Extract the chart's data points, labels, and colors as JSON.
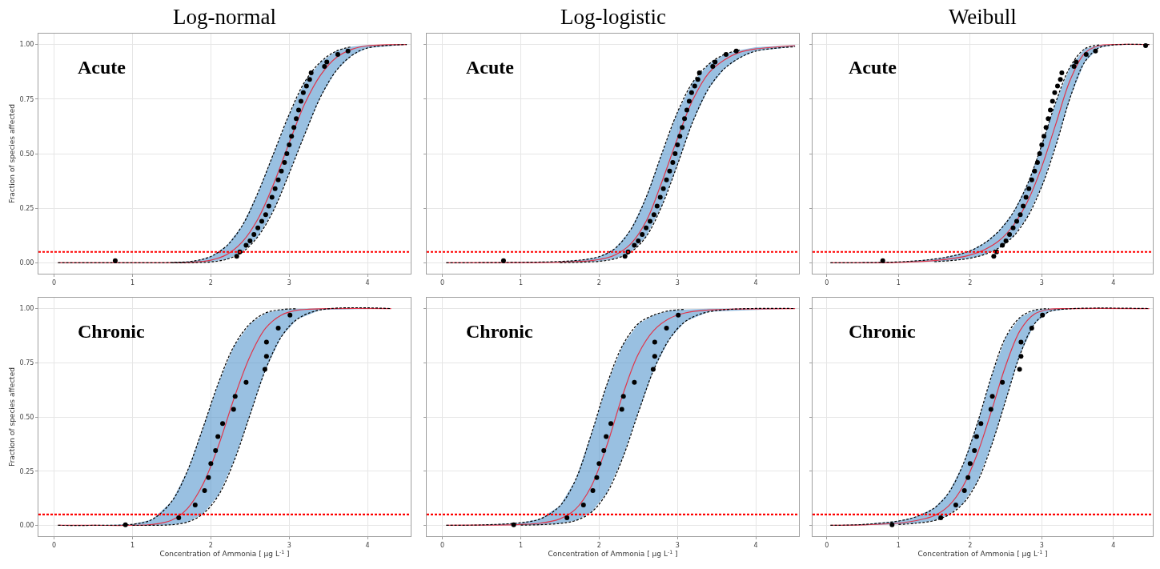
{
  "chart_data": [
    {
      "type": "scatter",
      "title": "Log-normal",
      "ylabel": "Fraction of species affected",
      "annotations": [
        "Acute"
      ],
      "x": [
        0.05,
        1,
        1.5,
        1.8,
        2,
        2.2,
        2.4,
        2.6,
        2.8,
        3,
        3.2,
        3.4,
        3.6,
        3.8,
        4,
        4.5
      ],
      "xlim": [
        -0.2,
        4.55
      ],
      "ylim": [
        -0.05,
        1.05
      ],
      "xticks": [
        0,
        1,
        2,
        3,
        4
      ],
      "yticks": [
        {
          "value": 0,
          "label": "0.00"
        },
        {
          "value": 0.25,
          "label": "0.25"
        },
        {
          "value": 0.5,
          "label": "0.50"
        },
        {
          "value": 0.75,
          "label": "0.75"
        },
        {
          "value": 1,
          "label": "1.00"
        }
      ],
      "grid": true,
      "series": [
        {
          "type": "line",
          "color": "#e0354a",
          "line_style": "solid",
          "values": [
            0,
            0,
            0,
            0.003,
            0.012,
            0.037,
            0.095,
            0.2,
            0.36,
            0.55,
            0.73,
            0.86,
            0.94,
            0.978,
            0.994,
            1
          ],
          "lower": [
            0,
            0,
            0,
            0.001,
            0.004,
            0.016,
            0.048,
            0.12,
            0.24,
            0.41,
            0.59,
            0.76,
            0.88,
            0.95,
            0.984,
            1
          ],
          "upper": [
            0,
            0,
            0.001,
            0.009,
            0.029,
            0.077,
            0.17,
            0.32,
            0.5,
            0.68,
            0.83,
            0.92,
            0.97,
            0.99,
            0.998,
            1
          ]
        },
        {
          "type": "line",
          "color": "#000000",
          "line_style": "dashed",
          "x": [
            1.5,
            1.8,
            2,
            2.2,
            2.4,
            2.6,
            2.8,
            3,
            3.2,
            3.4,
            3.6,
            3.8,
            4,
            4.5
          ],
          "values": [
            0,
            0.001,
            0.004,
            0.016,
            0.048,
            0.12,
            0.24,
            0.41,
            0.59,
            0.76,
            0.88,
            0.95,
            0.984,
            1
          ]
        },
        {
          "type": "line",
          "color": "#000000",
          "line_style": "dashed",
          "x": [
            0.05,
            1,
            1.5,
            1.8,
            2,
            2.2,
            2.4,
            2.6,
            2.8,
            3,
            3.2,
            3.4,
            3.6,
            3.8
          ],
          "values": [
            0,
            0,
            0.001,
            0.009,
            0.029,
            0.077,
            0.17,
            0.32,
            0.5,
            0.68,
            0.83,
            0.92,
            0.97,
            0.99
          ]
        },
        {
          "color": "#000000",
          "marker": "circle",
          "x": [
            0.78,
            2.33,
            2.37,
            2.45,
            2.5,
            2.55,
            2.6,
            2.65,
            2.7,
            2.74,
            2.78,
            2.82,
            2.86,
            2.9,
            2.94,
            2.97,
            3,
            3.03,
            3.06,
            3.09,
            3.12,
            3.15,
            3.18,
            3.22,
            3.26,
            3.28,
            3.45,
            3.48,
            3.62,
            3.75
          ],
          "values": [
            0.01,
            0.03,
            0.05,
            0.08,
            0.1,
            0.13,
            0.16,
            0.19,
            0.22,
            0.26,
            0.3,
            0.34,
            0.38,
            0.42,
            0.46,
            0.5,
            0.54,
            0.58,
            0.62,
            0.66,
            0.7,
            0.74,
            0.78,
            0.81,
            0.84,
            0.87,
            0.9,
            0.92,
            0.955,
            0.97
          ]
        }
      ],
      "ref_lines": [
        {
          "axis": "y",
          "value": 0.05,
          "color": "#ff0000",
          "line_style": "dashed"
        }
      ]
    },
    {
      "type": "scatter",
      "title": "Log-logistic",
      "annotations": [
        "Acute"
      ],
      "tick_labels": "x",
      "x": [
        0.05,
        1,
        1.5,
        1.8,
        2,
        2.2,
        2.4,
        2.6,
        2.8,
        3,
        3.2,
        3.4,
        3.6,
        3.8,
        4,
        4.5
      ],
      "xlim": [
        -0.2,
        4.55
      ],
      "ylim": [
        -0.05,
        1.05
      ],
      "xticks": [
        0,
        1,
        2,
        3,
        4
      ],
      "yticks": [
        0,
        0.25,
        0.5,
        0.75,
        1
      ],
      "grid": true,
      "series": [
        {
          "type": "line",
          "color": "#e0354a",
          "line_style": "solid",
          "values": [
            0,
            0.001,
            0.003,
            0.007,
            0.015,
            0.035,
            0.085,
            0.19,
            0.37,
            0.57,
            0.75,
            0.87,
            0.93,
            0.965,
            0.98,
            0.995
          ],
          "lower": [
            0,
            0,
            0.001,
            0.003,
            0.007,
            0.018,
            0.048,
            0.12,
            0.26,
            0.45,
            0.65,
            0.8,
            0.89,
            0.94,
            0.97,
            0.99
          ],
          "upper": [
            0,
            0.002,
            0.006,
            0.014,
            0.028,
            0.065,
            0.15,
            0.3,
            0.5,
            0.69,
            0.83,
            0.91,
            0.955,
            0.975,
            0.988,
            0.998
          ]
        },
        {
          "type": "line",
          "color": "#000000",
          "line_style": "dashed",
          "x": [
            1.5,
            1.8,
            2,
            2.2,
            2.4,
            2.6,
            2.8,
            3,
            3.2,
            3.4,
            3.6,
            3.8,
            4,
            4.5
          ],
          "values": [
            0.001,
            0.003,
            0.007,
            0.018,
            0.048,
            0.12,
            0.26,
            0.45,
            0.65,
            0.8,
            0.89,
            0.94,
            0.97,
            0.99
          ]
        },
        {
          "type": "line",
          "color": "#000000",
          "line_style": "dashed",
          "x": [
            0.05,
            1,
            1.5,
            1.8,
            2,
            2.2,
            2.4,
            2.6,
            2.8,
            3,
            3.2,
            3.4,
            3.6,
            3.8
          ],
          "values": [
            0,
            0.002,
            0.006,
            0.014,
            0.028,
            0.065,
            0.15,
            0.3,
            0.5,
            0.69,
            0.83,
            0.91,
            0.955,
            0.975
          ]
        },
        {
          "color": "#000000",
          "marker": "circle",
          "x": [
            0.78,
            2.33,
            2.37,
            2.45,
            2.5,
            2.55,
            2.6,
            2.65,
            2.7,
            2.74,
            2.78,
            2.82,
            2.86,
            2.9,
            2.94,
            2.97,
            3,
            3.03,
            3.06,
            3.09,
            3.12,
            3.15,
            3.18,
            3.22,
            3.26,
            3.28,
            3.45,
            3.48,
            3.62,
            3.75
          ],
          "values": [
            0.01,
            0.03,
            0.05,
            0.08,
            0.1,
            0.13,
            0.16,
            0.19,
            0.22,
            0.26,
            0.3,
            0.34,
            0.38,
            0.42,
            0.46,
            0.5,
            0.54,
            0.58,
            0.62,
            0.66,
            0.7,
            0.74,
            0.78,
            0.81,
            0.84,
            0.87,
            0.9,
            0.92,
            0.955,
            0.97
          ]
        }
      ],
      "ref_lines": [
        {
          "axis": "y",
          "value": 0.05,
          "color": "#ff0000",
          "line_style": "dashed"
        }
      ]
    },
    {
      "type": "scatter",
      "title": "Weibull",
      "annotations": [
        "Acute"
      ],
      "tick_labels": "x",
      "x": [
        0.05,
        1,
        1.5,
        1.8,
        2,
        2.2,
        2.4,
        2.6,
        2.8,
        3,
        3.2,
        3.4,
        3.6,
        3.8,
        4,
        4.5
      ],
      "xlim": [
        -0.2,
        4.55
      ],
      "ylim": [
        -0.05,
        1.05
      ],
      "xticks": [
        0,
        1,
        2,
        3,
        4
      ],
      "yticks": [
        0,
        0.25,
        0.5,
        0.75,
        1
      ],
      "grid": true,
      "series": [
        {
          "type": "line",
          "color": "#e0354a",
          "line_style": "solid",
          "values": [
            0,
            0.002,
            0.01,
            0.022,
            0.036,
            0.06,
            0.1,
            0.17,
            0.28,
            0.44,
            0.64,
            0.84,
            0.96,
            0.995,
            1,
            1
          ],
          "lower": [
            0,
            0.001,
            0.005,
            0.012,
            0.021,
            0.038,
            0.068,
            0.12,
            0.21,
            0.35,
            0.54,
            0.76,
            0.92,
            0.985,
            0.998,
            1
          ],
          "upper": [
            0,
            0.004,
            0.017,
            0.035,
            0.055,
            0.09,
            0.145,
            0.23,
            0.36,
            0.54,
            0.74,
            0.9,
            0.98,
            0.998,
            1,
            1
          ]
        },
        {
          "type": "line",
          "color": "#000000",
          "line_style": "dashed",
          "x": [
            1.5,
            1.8,
            2,
            2.2,
            2.4,
            2.6,
            2.8,
            3,
            3.2,
            3.4,
            3.6,
            3.8,
            4,
            4.5
          ],
          "values": [
            0.005,
            0.012,
            0.021,
            0.038,
            0.068,
            0.12,
            0.21,
            0.35,
            0.54,
            0.76,
            0.92,
            0.985,
            0.998,
            1
          ]
        },
        {
          "type": "line",
          "color": "#000000",
          "line_style": "dashed",
          "x": [
            0.05,
            1,
            1.5,
            1.8,
            2,
            2.2,
            2.4,
            2.6,
            2.8,
            3,
            3.2,
            3.4,
            3.6,
            3.8
          ],
          "values": [
            0,
            0.004,
            0.017,
            0.035,
            0.055,
            0.09,
            0.145,
            0.23,
            0.36,
            0.54,
            0.74,
            0.9,
            0.98,
            0.998
          ]
        },
        {
          "color": "#000000",
          "marker": "circle",
          "x": [
            0.78,
            2.33,
            2.37,
            2.45,
            2.5,
            2.55,
            2.6,
            2.65,
            2.7,
            2.74,
            2.78,
            2.82,
            2.86,
            2.9,
            2.94,
            2.97,
            3,
            3.03,
            3.06,
            3.09,
            3.12,
            3.15,
            3.18,
            3.22,
            3.26,
            3.28,
            3.45,
            3.48,
            3.62,
            3.75,
            4.45
          ],
          "values": [
            0.01,
            0.03,
            0.05,
            0.08,
            0.1,
            0.13,
            0.16,
            0.19,
            0.22,
            0.26,
            0.3,
            0.34,
            0.38,
            0.42,
            0.46,
            0.5,
            0.54,
            0.58,
            0.62,
            0.66,
            0.7,
            0.74,
            0.78,
            0.81,
            0.84,
            0.87,
            0.9,
            0.92,
            0.955,
            0.97,
            0.995
          ]
        }
      ],
      "ref_lines": [
        {
          "axis": "y",
          "value": 0.05,
          "color": "#ff0000",
          "line_style": "dashed"
        }
      ]
    },
    {
      "type": "scatter",
      "xlabel": "Concentration of Ammonia [ μg L$^{-1}$ ]",
      "ylabel": "Fraction of species affected",
      "annotations": [
        "Chronic"
      ],
      "x": [
        0.05,
        0.5,
        1,
        1.25,
        1.5,
        1.7,
        1.9,
        2.1,
        2.3,
        2.5,
        2.7,
        2.9,
        3.1,
        3.4,
        4.3
      ],
      "xlim": [
        -0.2,
        4.55
      ],
      "ylim": [
        -0.05,
        1.05
      ],
      "xticks": [
        0,
        1,
        2,
        3,
        4
      ],
      "yticks": [
        {
          "value": 0,
          "label": "0.00"
        },
        {
          "value": 0.25,
          "label": "0.25"
        },
        {
          "value": 0.5,
          "label": "0.50"
        },
        {
          "value": 0.75,
          "label": "0.75"
        },
        {
          "value": 1,
          "label": "1.00"
        }
      ],
      "grid": true,
      "series": [
        {
          "type": "line",
          "color": "#e0354a",
          "line_style": "solid",
          "values": [
            0,
            0,
            0,
            0.004,
            0.024,
            0.077,
            0.19,
            0.37,
            0.59,
            0.78,
            0.91,
            0.97,
            0.992,
            0.999,
            1
          ],
          "lower": [
            0,
            0,
            0,
            0,
            0.003,
            0.015,
            0.053,
            0.14,
            0.3,
            0.51,
            0.72,
            0.87,
            0.95,
            0.994,
            1
          ],
          "upper": [
            0,
            0,
            0.005,
            0.027,
            0.11,
            0.25,
            0.45,
            0.66,
            0.83,
            0.93,
            0.98,
            0.995,
            0.999,
            1,
            1
          ]
        },
        {
          "type": "line",
          "color": "#000000",
          "line_style": "dashed",
          "x": [
            1,
            1.25,
            1.5,
            1.7,
            1.9,
            2.1,
            2.3,
            2.5,
            2.7,
            2.9,
            3.1,
            3.4,
            4.3
          ],
          "values": [
            0,
            0,
            0.003,
            0.015,
            0.053,
            0.14,
            0.3,
            0.51,
            0.72,
            0.87,
            0.95,
            0.994,
            1
          ]
        },
        {
          "type": "line",
          "color": "#000000",
          "line_style": "dashed",
          "x": [
            0.05,
            0.5,
            1,
            1.25,
            1.5,
            1.7,
            1.9,
            2.1,
            2.3,
            2.5,
            2.7,
            2.9,
            3.1
          ],
          "values": [
            0,
            0,
            0.005,
            0.027,
            0.11,
            0.25,
            0.45,
            0.66,
            0.83,
            0.93,
            0.98,
            0.995,
            0.999
          ]
        },
        {
          "color": "#000000",
          "marker": "circle",
          "x": [
            0.91,
            1.59,
            1.8,
            1.92,
            1.97,
            2,
            2.06,
            2.09,
            2.15,
            2.29,
            2.31,
            2.45,
            2.69,
            2.71,
            2.71,
            2.86,
            3.01
          ],
          "values": [
            0.003,
            0.035,
            0.094,
            0.16,
            0.22,
            0.285,
            0.345,
            0.41,
            0.47,
            0.535,
            0.595,
            0.66,
            0.72,
            0.78,
            0.845,
            0.91,
            0.97
          ]
        }
      ],
      "ref_lines": [
        {
          "axis": "y",
          "value": 0.05,
          "color": "#ff0000",
          "line_style": "dashed"
        }
      ]
    },
    {
      "type": "scatter",
      "xlabel": "Concentration of Ammonia [ μg L$^{-1}$ ]",
      "annotations": [
        "Chronic"
      ],
      "tick_labels": "x",
      "x": [
        0.05,
        0.5,
        1,
        1.25,
        1.5,
        1.7,
        1.9,
        2.1,
        2.3,
        2.5,
        2.7,
        2.9,
        3.1,
        3.4,
        4.5
      ],
      "xlim": [
        -0.2,
        4.55
      ],
      "ylim": [
        -0.05,
        1.05
      ],
      "xticks": [
        0,
        1,
        2,
        3,
        4
      ],
      "yticks": [
        0,
        0.25,
        0.5,
        0.75,
        1
      ],
      "grid": true,
      "series": [
        {
          "type": "line",
          "color": "#e0354a",
          "line_style": "solid",
          "values": [
            0,
            0.001,
            0.004,
            0.01,
            0.03,
            0.075,
            0.18,
            0.37,
            0.6,
            0.79,
            0.9,
            0.955,
            0.98,
            0.993,
            1
          ],
          "lower": [
            0,
            0,
            0.001,
            0.003,
            0.009,
            0.022,
            0.06,
            0.15,
            0.31,
            0.52,
            0.72,
            0.86,
            0.94,
            0.985,
            1
          ],
          "upper": [
            0,
            0.002,
            0.012,
            0.03,
            0.09,
            0.21,
            0.42,
            0.65,
            0.83,
            0.93,
            0.97,
            0.99,
            0.996,
            0.999,
            1
          ]
        },
        {
          "type": "line",
          "color": "#000000",
          "line_style": "dashed",
          "x": [
            1,
            1.25,
            1.5,
            1.7,
            1.9,
            2.1,
            2.3,
            2.5,
            2.7,
            2.9,
            3.1,
            3.4,
            4.5
          ],
          "values": [
            0.001,
            0.003,
            0.009,
            0.022,
            0.06,
            0.15,
            0.31,
            0.52,
            0.72,
            0.86,
            0.94,
            0.985,
            1
          ]
        },
        {
          "type": "line",
          "color": "#000000",
          "line_style": "dashed",
          "x": [
            0.05,
            0.5,
            1,
            1.25,
            1.5,
            1.7,
            1.9,
            2.1,
            2.3,
            2.5,
            2.7,
            2.9,
            3.1
          ],
          "values": [
            0,
            0.002,
            0.012,
            0.03,
            0.09,
            0.21,
            0.42,
            0.65,
            0.83,
            0.93,
            0.97,
            0.99,
            0.996
          ]
        },
        {
          "color": "#000000",
          "marker": "circle",
          "x": [
            0.91,
            1.59,
            1.8,
            1.92,
            1.97,
            2,
            2.06,
            2.09,
            2.15,
            2.29,
            2.31,
            2.45,
            2.69,
            2.71,
            2.71,
            2.86,
            3.01
          ],
          "values": [
            0.003,
            0.035,
            0.094,
            0.16,
            0.22,
            0.285,
            0.345,
            0.41,
            0.47,
            0.535,
            0.595,
            0.66,
            0.72,
            0.78,
            0.845,
            0.91,
            0.97
          ]
        }
      ],
      "ref_lines": [
        {
          "axis": "y",
          "value": 0.05,
          "color": "#ff0000",
          "line_style": "dashed"
        }
      ]
    },
    {
      "type": "scatter",
      "xlabel": "Concentration of Ammonia [ μg L$^{-1}$ ]",
      "annotations": [
        "Chronic"
      ],
      "tick_labels": "x",
      "x": [
        0.05,
        0.5,
        1,
        1.25,
        1.5,
        1.7,
        1.9,
        2.1,
        2.3,
        2.5,
        2.7,
        2.9,
        3.1,
        3.4,
        4.5
      ],
      "xlim": [
        -0.2,
        4.55
      ],
      "ylim": [
        -0.05,
        1.05
      ],
      "xticks": [
        0,
        1,
        2,
        3,
        4
      ],
      "yticks": [
        0,
        0.25,
        0.5,
        0.75,
        1
      ],
      "grid": true,
      "series": [
        {
          "type": "line",
          "color": "#e0354a",
          "line_style": "solid",
          "values": [
            0,
            0.002,
            0.01,
            0.022,
            0.045,
            0.09,
            0.18,
            0.33,
            0.53,
            0.74,
            0.9,
            0.975,
            0.996,
            1,
            1
          ],
          "lower": [
            0,
            0.001,
            0.004,
            0.01,
            0.022,
            0.048,
            0.1,
            0.2,
            0.37,
            0.58,
            0.79,
            0.93,
            0.985,
            0.999,
            1
          ],
          "upper": [
            0,
            0.004,
            0.02,
            0.04,
            0.08,
            0.15,
            0.28,
            0.47,
            0.69,
            0.87,
            0.96,
            0.993,
            0.999,
            1,
            1
          ]
        },
        {
          "type": "line",
          "color": "#000000",
          "line_style": "dashed",
          "x": [
            1,
            1.25,
            1.5,
            1.7,
            1.9,
            2.1,
            2.3,
            2.5,
            2.7,
            2.9,
            3.1,
            3.4,
            4.5
          ],
          "values": [
            0.004,
            0.01,
            0.022,
            0.048,
            0.1,
            0.2,
            0.37,
            0.58,
            0.79,
            0.93,
            0.985,
            0.999,
            1
          ]
        },
        {
          "type": "line",
          "color": "#000000",
          "line_style": "dashed",
          "x": [
            0.05,
            0.5,
            1,
            1.25,
            1.5,
            1.7,
            1.9,
            2.1,
            2.3,
            2.5,
            2.7,
            2.9,
            3.1
          ],
          "values": [
            0,
            0.004,
            0.02,
            0.04,
            0.08,
            0.15,
            0.28,
            0.47,
            0.69,
            0.87,
            0.96,
            0.993,
            0.999
          ]
        },
        {
          "color": "#000000",
          "marker": "circle",
          "x": [
            0.91,
            1.59,
            1.8,
            1.92,
            1.97,
            2,
            2.06,
            2.09,
            2.15,
            2.29,
            2.31,
            2.45,
            2.69,
            2.71,
            2.71,
            2.86,
            3.01
          ],
          "values": [
            0.003,
            0.035,
            0.094,
            0.16,
            0.22,
            0.285,
            0.345,
            0.41,
            0.47,
            0.535,
            0.595,
            0.66,
            0.72,
            0.78,
            0.845,
            0.91,
            0.97
          ]
        }
      ],
      "ref_lines": [
        {
          "axis": "y",
          "value": 0.05,
          "color": "#ff0000",
          "line_style": "dashed"
        }
      ]
    }
  ]
}
